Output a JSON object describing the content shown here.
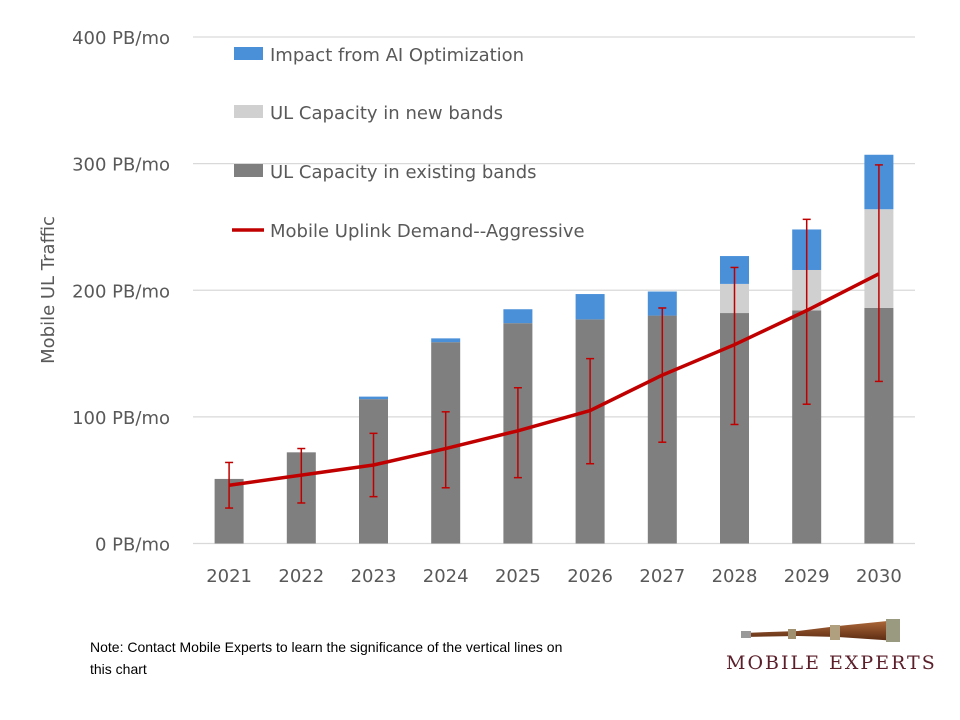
{
  "chart_data": {
    "type": "bar",
    "stacked": true,
    "categories": [
      "2021",
      "2022",
      "2023",
      "2024",
      "2025",
      "2026",
      "2027",
      "2028",
      "2029",
      "2030"
    ],
    "ylabel": "Mobile UL Traffic",
    "ylim": [
      0,
      400
    ],
    "yticks": [
      0,
      100,
      200,
      300,
      400
    ],
    "ytick_labels": [
      "0 PB/mo",
      "100 PB/mo",
      "200 PB/mo",
      "300 PB/mo",
      "400 PB/mo"
    ],
    "grid": true,
    "legend_position": "top-left",
    "series": [
      {
        "name": "UL Capacity in existing bands",
        "type": "bar",
        "color": "#7f7f7f",
        "values": [
          51,
          72,
          114,
          159,
          174,
          177,
          180,
          182,
          184,
          186
        ]
      },
      {
        "name": "UL Capacity in new bands",
        "type": "bar",
        "color": "#d0d0d0",
        "values": [
          0,
          0,
          0,
          0,
          0,
          0,
          0,
          23,
          32,
          78
        ]
      },
      {
        "name": "Impact from AI Optimization",
        "type": "bar",
        "color": "#4a90d9",
        "values": [
          0,
          0,
          2,
          3,
          11,
          20,
          19,
          22,
          32,
          43
        ]
      },
      {
        "name": "Mobile Uplink Demand--Aggressive",
        "type": "line",
        "color": "#c00000",
        "values": [
          46,
          54,
          62,
          75,
          89,
          105,
          133,
          157,
          184,
          213
        ],
        "error_low": [
          28,
          32,
          37,
          44,
          52,
          63,
          80,
          94,
          110,
          128
        ],
        "error_high": [
          64,
          75,
          87,
          104,
          123,
          146,
          186,
          218,
          256,
          299
        ]
      }
    ],
    "legend_order": [
      "Impact from AI Optimization",
      "UL Capacity in new bands",
      "UL Capacity in existing bands",
      "Mobile Uplink Demand--Aggressive"
    ]
  },
  "note": "Note:  Contact Mobile Experts to learn the significance of the vertical lines on this chart",
  "logo": {
    "text": "MOBILE EXPERTS"
  }
}
